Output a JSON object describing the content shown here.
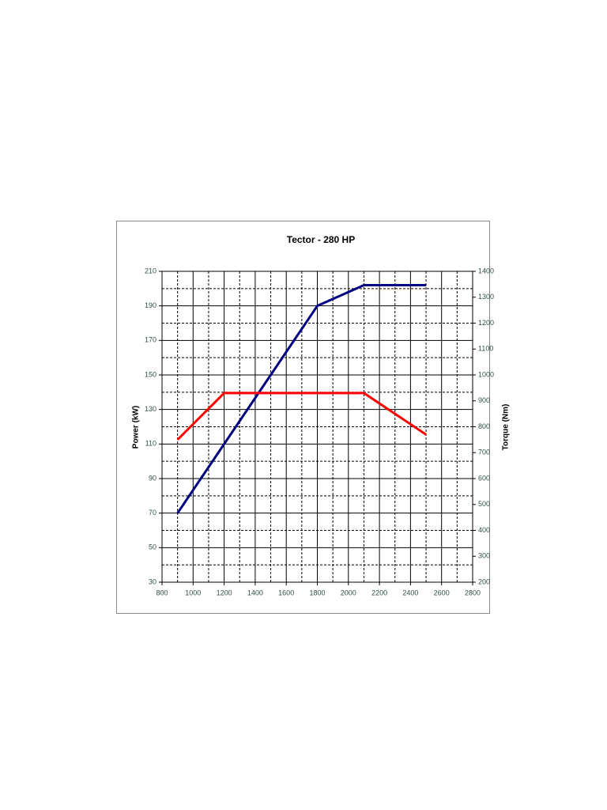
{
  "chart_data": {
    "type": "line",
    "title": "Tector - 280 HP",
    "y_label": "Power (kW)",
    "y2_label": "Torque (Nm)",
    "xlim": [
      800,
      2800
    ],
    "xticks": [
      800,
      1000,
      1200,
      1400,
      1600,
      1800,
      2000,
      2200,
      2400,
      2600,
      2800
    ],
    "ylim": [
      30,
      210
    ],
    "yticks": [
      30,
      50,
      70,
      90,
      110,
      130,
      150,
      170,
      190,
      210
    ],
    "y2lim": [
      200,
      1400
    ],
    "y2ticks": [
      200,
      300,
      400,
      500,
      600,
      700,
      800,
      900,
      1000,
      1100,
      1200,
      1300,
      1400
    ],
    "grid": true,
    "series": [
      {
        "name": "Power",
        "color": "#000080",
        "x": [
          900,
          1800,
          2100,
          2500
        ],
        "values": [
          70,
          190,
          202,
          202
        ]
      },
      {
        "name": "Torque",
        "color": "#ff0000",
        "axis": "y2",
        "x": [
          900,
          1200,
          2100,
          2500
        ],
        "values": [
          750,
          930,
          930,
          770
        ]
      }
    ]
  }
}
